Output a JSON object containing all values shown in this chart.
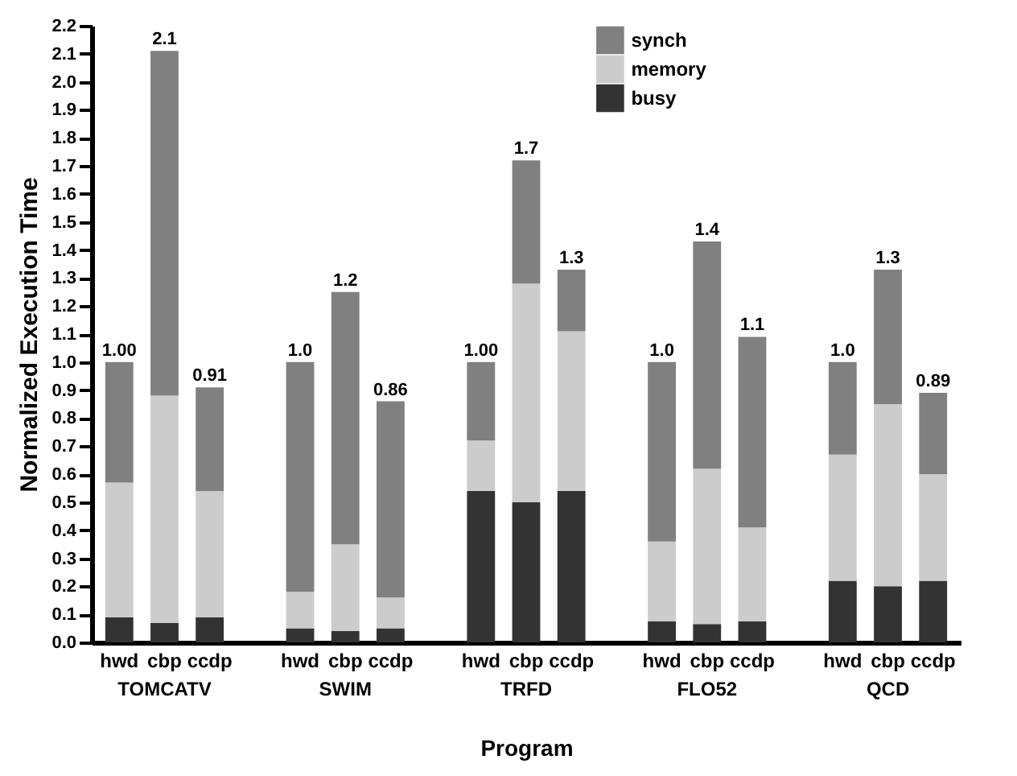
{
  "chart_data": {
    "type": "bar",
    "stacked": true,
    "xlabel": "Program",
    "ylabel": "Normalized Execution Time",
    "categories": [
      "hwd",
      "cbp",
      "ccdp",
      "hwd",
      "cbp",
      "ccdp",
      "hwd",
      "cbp",
      "ccdp",
      "hwd",
      "cbp",
      "ccdp",
      "hwd",
      "cbp",
      "ccdp"
    ],
    "annotations": [
      "TOMCATV",
      "SWIM",
      "TRFD",
      "FLO52",
      "QCD"
    ],
    "series": [
      {
        "name": "busy",
        "color": "#333333",
        "values": [
          0.09,
          0.07,
          0.09,
          0.05,
          0.04,
          0.05,
          0.54,
          0.5,
          0.54,
          0.075,
          0.065,
          0.075,
          0.22,
          0.2,
          0.22
        ]
      },
      {
        "name": "memory",
        "color": "#cccccc",
        "values": [
          0.48,
          0.81,
          0.45,
          0.13,
          0.31,
          0.11,
          0.18,
          0.78,
          0.57,
          0.285,
          0.555,
          0.335,
          0.45,
          0.65,
          0.38
        ]
      },
      {
        "name": "synch",
        "color": "#808080",
        "values": [
          0.43,
          1.23,
          0.37,
          0.82,
          0.9,
          0.7,
          0.28,
          0.44,
          0.22,
          0.64,
          0.81,
          0.68,
          0.33,
          0.48,
          0.29
        ]
      }
    ],
    "totals": [
      "1.00",
      "2.1",
      "0.91",
      "1.0",
      "1.2",
      "0.86",
      "1.00",
      "1.7",
      "1.3",
      "1.0",
      "1.4",
      "1.1",
      "1.0",
      "1.3",
      "0.89"
    ],
    "ylim": [
      0,
      2.2
    ],
    "yticks": [
      {
        "value": 0,
        "label": "0.0"
      },
      0.1,
      0.2,
      0.3,
      0.4,
      0.5,
      0.6,
      0.7,
      0.8,
      0.9,
      {
        "value": 1,
        "label": "1.0"
      },
      1.1,
      1.2,
      1.3,
      1.4,
      1.5,
      1.6,
      1.7,
      1.8,
      1.9,
      {
        "value": 2,
        "label": "2.0"
      },
      2.1,
      2.2
    ],
    "grid": false,
    "legend": "top"
  }
}
